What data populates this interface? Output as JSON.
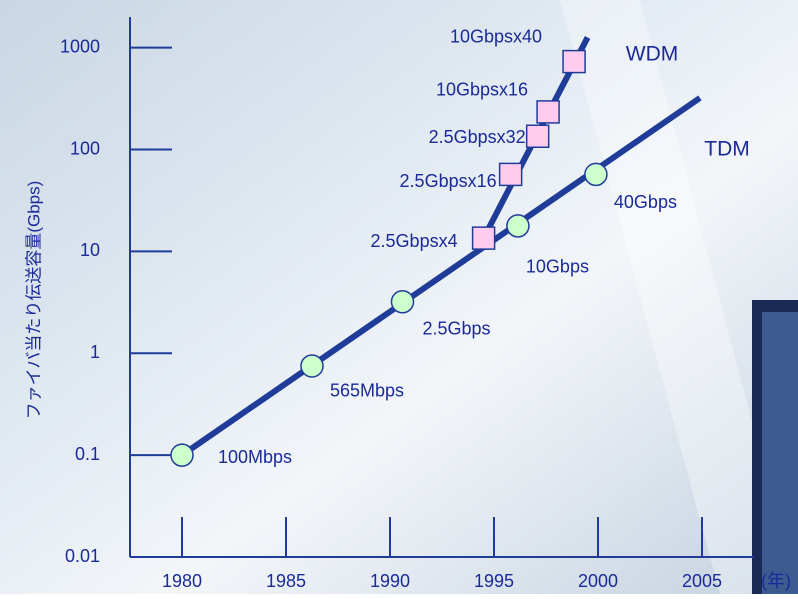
{
  "chart_data": {
    "type": "line",
    "y_label": "ファイバ当たり伝送容量(Gbps)",
    "x_label": "(年)",
    "log_y": true,
    "xlim": [
      1977.5,
      2007.5
    ],
    "xticks": [
      1980,
      1985,
      1990,
      1995,
      2000,
      2005
    ],
    "ylim": [
      0.01,
      2000
    ],
    "yticks": [
      0.01,
      0.1,
      1,
      10,
      100,
      1000
    ],
    "series": [
      {
        "name": "TDM",
        "color": "#1f3c99",
        "marker": "circle",
        "marker_color": "#ccffcc",
        "x": [
          1980,
          1986.25,
          1990.6,
          1996.15,
          1999.9
        ],
        "values": [
          0.1,
          0.75,
          3.2,
          17.8,
          57
        ],
        "point_labels": [
          "100Mbps",
          "565Mbps",
          "2.5Gbps",
          "10Gbps",
          "40Gbps"
        ],
        "line_x": [
          1980,
          2004.9
        ],
        "line_values": [
          0.1,
          321
        ]
      },
      {
        "name": "WDM",
        "color": "#1f3c99",
        "marker": "square",
        "marker_color": "#ffccee",
        "x": [
          1994.5,
          1995.8,
          1997.1,
          1997.6,
          1998.85
        ],
        "values": [
          13.5,
          57,
          135,
          234,
          730
        ],
        "point_labels": [
          "2.5Gbpsx4",
          "2.5Gbpsx16",
          "2.5Gbpsx32",
          "10Gbpsx16",
          "10Gbpsx40"
        ],
        "line_x": [
          1994.5,
          1999.5
        ],
        "line_values": [
          13.5,
          1260
        ]
      }
    ]
  }
}
